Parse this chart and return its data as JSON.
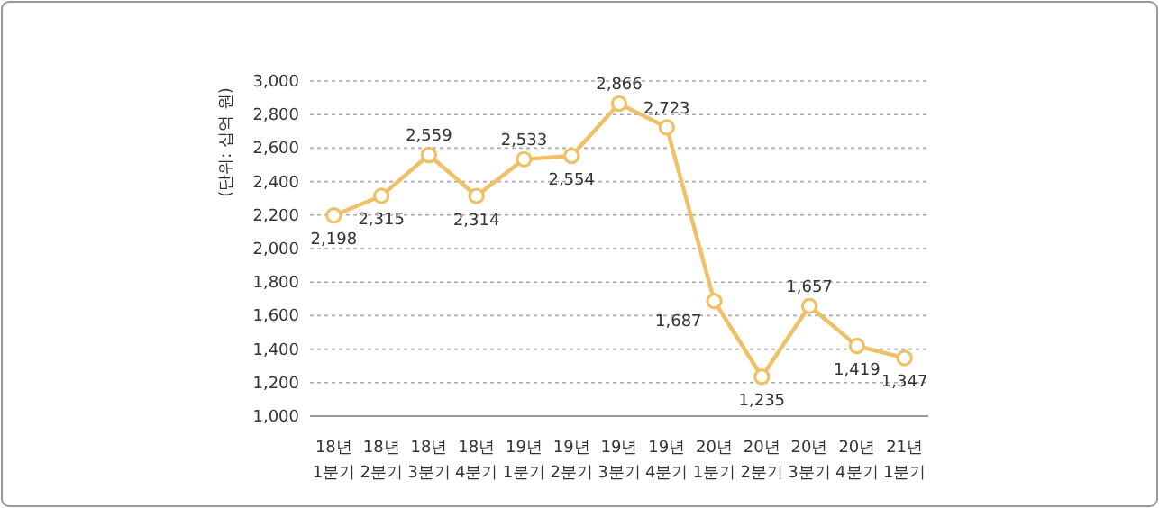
{
  "chart_data": {
    "type": "line",
    "ylabel": "(단위: 십억 원)",
    "categories": [
      "18년 1분기",
      "18년 2분기",
      "18년 3분기",
      "18년 4분기",
      "19년 1분기",
      "19년 2분기",
      "19년 3분기",
      "19년 4분기",
      "20년 1분기",
      "20년 2분기",
      "20년 3분기",
      "20년 4분기",
      "21년 1분기"
    ],
    "values": [
      2198,
      2315,
      2559,
      2314,
      2533,
      2554,
      2866,
      2723,
      1687,
      1235,
      1657,
      1419,
      1347
    ],
    "value_labels": [
      "2,198",
      "2,315",
      "2,559",
      "2,314",
      "2,533",
      "2,554",
      "2,866",
      "2,723",
      "1,687",
      "1,235",
      "1,657",
      "1,419",
      "1,347"
    ],
    "color": "#f0c066",
    "ylim": [
      1000,
      3000
    ],
    "yticks": [
      {
        "value": 1000,
        "label": "1,000"
      },
      {
        "value": 1200,
        "label": "1,200"
      },
      {
        "value": 1400,
        "label": "1,400"
      },
      {
        "value": 1600,
        "label": "1,600"
      },
      {
        "value": 1800,
        "label": "1,800"
      },
      {
        "value": 2000,
        "label": "2,000"
      },
      {
        "value": 2200,
        "label": "2,200"
      },
      {
        "value": 2400,
        "label": "2,400"
      },
      {
        "value": 2600,
        "label": "2,600"
      },
      {
        "value": 2800,
        "label": "2,800"
      },
      {
        "value": 3000,
        "label": "3,000"
      }
    ],
    "grid": "y",
    "marker": "circle",
    "line_style": "solid"
  }
}
